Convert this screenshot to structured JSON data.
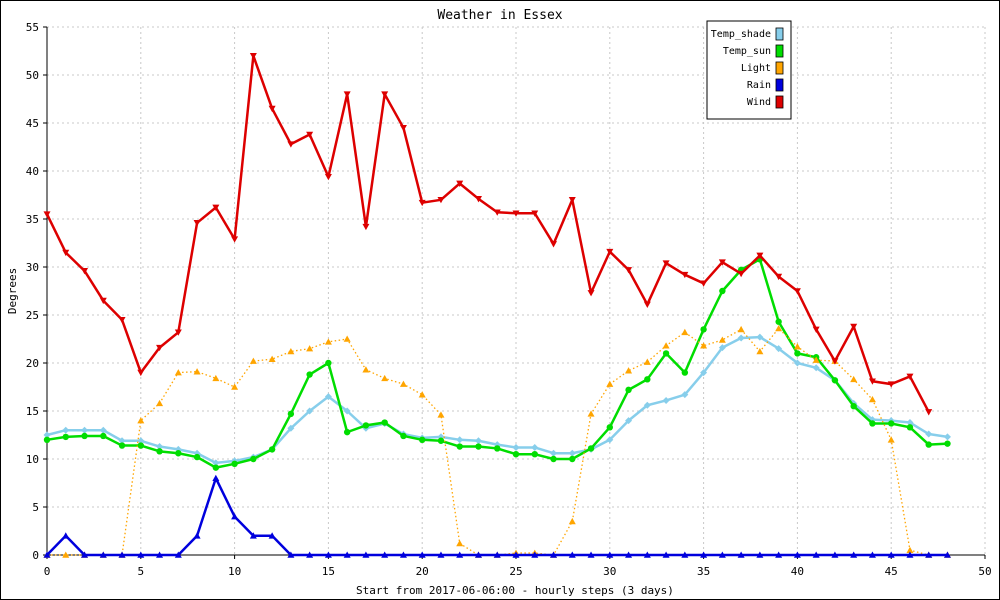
{
  "chart_data": {
    "type": "line",
    "title": "Weather in Essex",
    "xlabel": "Start from 2017-06-06:00 - hourly steps (3 days)",
    "ylabel": "Degrees",
    "xlim": [
      0,
      50
    ],
    "ylim": [
      0,
      55
    ],
    "x_ticks": [
      0,
      5,
      10,
      15,
      20,
      25,
      30,
      35,
      40,
      45,
      50
    ],
    "y_ticks": [
      0,
      5,
      10,
      15,
      20,
      25,
      30,
      35,
      40,
      45,
      50,
      55
    ],
    "grid": true,
    "legend_position": "top-right",
    "series": [
      {
        "name": "Temp_shade",
        "color": "#87ceeb",
        "marker": "diamond",
        "line": "solid",
        "x": [
          0,
          1,
          2,
          3,
          4,
          5,
          6,
          7,
          8,
          9,
          10,
          11,
          12,
          13,
          14,
          15,
          16,
          17,
          18,
          19,
          20,
          21,
          22,
          23,
          24,
          25,
          26,
          27,
          28,
          29,
          30,
          31,
          32,
          33,
          34,
          35,
          36,
          37,
          38,
          39,
          40,
          41,
          42,
          43,
          44,
          45,
          46,
          47,
          48
        ],
        "values": [
          12.5,
          13,
          13,
          13,
          11.9,
          11.9,
          11.3,
          11,
          10.6,
          9.6,
          9.8,
          10.2,
          11,
          13.2,
          15,
          16.5,
          15,
          13.2,
          13.7,
          12.6,
          12.2,
          12.3,
          12,
          11.9,
          11.5,
          11.2,
          11.2,
          10.6,
          10.6,
          11,
          12,
          14,
          15.6,
          16.1,
          16.7,
          19,
          21.6,
          22.6,
          22.7,
          21.5,
          20,
          19.5,
          18.2,
          15.8,
          14.1,
          14,
          13.8,
          12.6,
          12.3
        ]
      },
      {
        "name": "Temp_sun",
        "color": "#00dd00",
        "marker": "circle",
        "line": "solid",
        "x": [
          0,
          1,
          2,
          3,
          4,
          5,
          6,
          7,
          8,
          9,
          10,
          11,
          12,
          13,
          14,
          15,
          16,
          17,
          18,
          19,
          20,
          21,
          22,
          23,
          24,
          25,
          26,
          27,
          28,
          29,
          30,
          31,
          32,
          33,
          34,
          35,
          36,
          37,
          38,
          39,
          40,
          41,
          42,
          43,
          44,
          45,
          46,
          47,
          48
        ],
        "values": [
          12,
          12.3,
          12.4,
          12.4,
          11.4,
          11.4,
          10.8,
          10.6,
          10.2,
          9.1,
          9.5,
          10,
          11,
          14.7,
          18.8,
          20,
          12.8,
          13.5,
          13.8,
          12.4,
          12,
          11.9,
          11.3,
          11.3,
          11.1,
          10.5,
          10.5,
          10,
          10,
          11.1,
          13.3,
          17.2,
          18.3,
          21,
          19,
          23.5,
          27.5,
          29.7,
          30.8,
          24.3,
          21,
          20.6,
          18.2,
          15.5,
          13.7,
          13.7,
          13.3,
          11.5,
          11.6
        ]
      },
      {
        "name": "Light",
        "color": "#ffa500",
        "marker": "triangle-up",
        "line": "dotted",
        "x": [
          0,
          1,
          2,
          3,
          4,
          5,
          6,
          7,
          8,
          9,
          10,
          11,
          12,
          13,
          14,
          15,
          16,
          17,
          18,
          19,
          20,
          21,
          22,
          23,
          24,
          25,
          26,
          27,
          28,
          29,
          30,
          31,
          32,
          33,
          34,
          35,
          36,
          37,
          38,
          39,
          40,
          41,
          42,
          43,
          44,
          45,
          46,
          47,
          48
        ],
        "values": [
          0,
          0,
          0,
          0,
          0,
          14,
          15.8,
          19,
          19.1,
          18.4,
          17.5,
          20.2,
          20.4,
          21.2,
          21.5,
          22.2,
          22.5,
          19.3,
          18.4,
          17.8,
          16.7,
          14.6,
          1.2,
          0,
          0,
          0.2,
          0.2,
          0,
          3.5,
          14.7,
          17.8,
          19.2,
          20.1,
          21.8,
          23.2,
          21.8,
          22.4,
          23.5,
          21.2,
          23.6,
          21.7,
          20.3,
          20.2,
          18.3,
          16.2,
          12,
          0.5,
          0,
          0
        ]
      },
      {
        "name": "Rain",
        "color": "#0000dd",
        "marker": "triangle-up",
        "line": "solid",
        "x": [
          0,
          1,
          2,
          3,
          4,
          5,
          6,
          7,
          8,
          9,
          10,
          11,
          12,
          13,
          14,
          15,
          16,
          17,
          18,
          19,
          20,
          21,
          22,
          23,
          24,
          25,
          26,
          27,
          28,
          29,
          30,
          31,
          32,
          33,
          34,
          35,
          36,
          37,
          38,
          39,
          40,
          41,
          42,
          43,
          44,
          45,
          46,
          47,
          48
        ],
        "values": [
          0,
          2,
          0,
          0,
          0,
          0,
          0,
          0,
          2,
          8,
          4,
          2,
          2,
          0,
          0,
          0,
          0,
          0,
          0,
          0,
          0,
          0,
          0,
          0,
          0,
          0,
          0,
          0,
          0,
          0,
          0,
          0,
          0,
          0,
          0,
          0,
          0,
          0,
          0,
          0,
          0,
          0,
          0,
          0,
          0,
          0,
          0,
          0,
          0
        ]
      },
      {
        "name": "Wind",
        "color": "#dd0000",
        "marker": "triangle-down",
        "line": "solid",
        "x": [
          0,
          1,
          2,
          3,
          4,
          5,
          6,
          7,
          8,
          9,
          10,
          11,
          12,
          13,
          14,
          15,
          16,
          17,
          18,
          19,
          20,
          21,
          22,
          23,
          24,
          25,
          26,
          27,
          28,
          29,
          30,
          31,
          32,
          33,
          34,
          35,
          36,
          37,
          38,
          39,
          40,
          41,
          42,
          43,
          44,
          45,
          46,
          47
        ],
        "values": [
          35.5,
          31.5,
          29.6,
          26.5,
          24.5,
          19,
          21.6,
          23.2,
          34.6,
          36.2,
          32.9,
          52,
          46.5,
          42.8,
          43.8,
          39.4,
          48,
          34.2,
          48,
          44.5,
          36.7,
          37,
          38.7,
          37.1,
          35.7,
          35.6,
          35.6,
          32.4,
          37,
          27.3,
          31.6,
          29.7,
          26.1,
          30.4,
          29.2,
          28.3,
          30.5,
          29.3,
          31.2,
          29,
          27.5,
          23.5,
          20.2,
          23.8,
          18.1,
          17.8,
          18.6,
          14.9
        ]
      }
    ]
  }
}
